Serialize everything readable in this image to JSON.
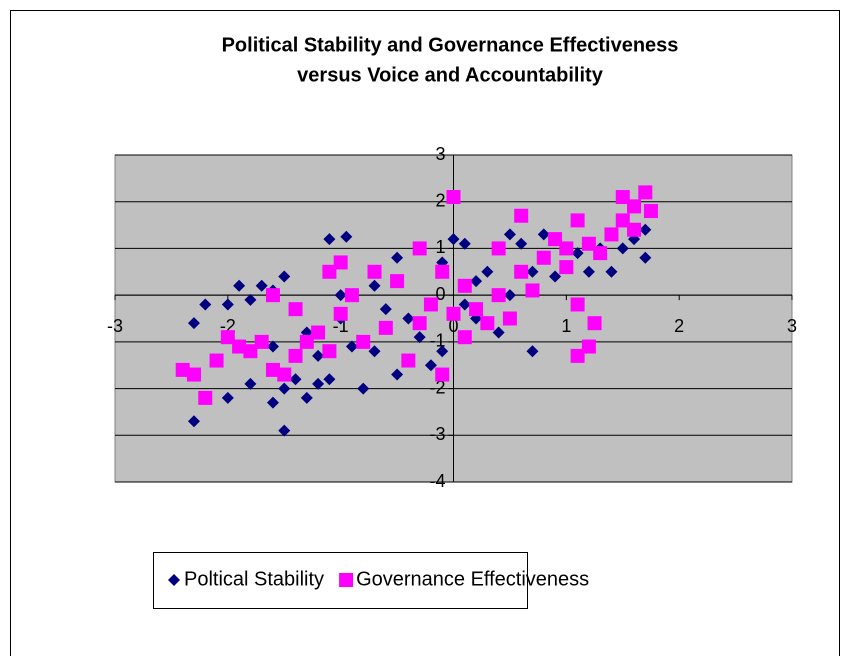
{
  "chart_data": {
    "type": "scatter",
    "title": [
      "Political Stability and Governance Effectiveness",
      "versus Voice and Accountability"
    ],
    "xlim": [
      -3,
      3
    ],
    "xticks": [
      -3,
      -2,
      -1,
      0,
      1,
      2,
      3
    ],
    "ylim": [
      -4,
      3
    ],
    "yticks": [
      -4,
      -3,
      -2,
      -1,
      0,
      1,
      2,
      3
    ],
    "grid": true,
    "series": [
      {
        "name": "Poltical Stability",
        "color": "#000080",
        "marker": "diamond",
        "x": [
          -2.3,
          -2.2,
          -2.0,
          -1.9,
          -1.8,
          -1.7,
          -1.6,
          -1.5,
          -2.3,
          -2.0,
          -1.8,
          -1.6,
          -1.5,
          -1.5,
          -1.4,
          -1.3,
          -1.2,
          -1.1,
          -1.1,
          -0.95,
          -1.0,
          -0.9,
          -0.8,
          -0.7,
          -0.6,
          -0.5,
          -0.5,
          -0.3,
          -0.2,
          -0.1,
          -0.1,
          0,
          0.1,
          0.1,
          0.2,
          0.3,
          0.4,
          0.5,
          0.6,
          0.7,
          0.7,
          0.8,
          0.9,
          1.0,
          1.1,
          1.2,
          1.3,
          1.4,
          1.5,
          1.6,
          1.7,
          1.7,
          -1.2,
          -0.4,
          0.2,
          -0.7,
          -1.3,
          -1.6,
          -1.0,
          0.5
        ],
        "values": [
          -0.6,
          -0.2,
          -0.2,
          0.2,
          -0.1,
          0.2,
          0.1,
          0.4,
          -2.7,
          -2.2,
          -1.9,
          -2.3,
          -2.0,
          -2.9,
          -1.8,
          -2.2,
          -1.9,
          -1.8,
          1.2,
          1.25,
          -0.5,
          -1.1,
          -2.0,
          -1.2,
          -0.3,
          0.8,
          -1.7,
          -0.9,
          -1.5,
          -1.2,
          0.7,
          1.2,
          -0.2,
          1.1,
          0.3,
          0.5,
          -0.8,
          1.3,
          1.1,
          -1.2,
          0.5,
          1.3,
          0.4,
          0.6,
          0.9,
          0.5,
          1.0,
          0.5,
          1.0,
          1.2,
          1.4,
          0.8,
          -1.3,
          -0.5,
          -0.5,
          0.2,
          -0.8,
          -1.1,
          0.0,
          0.0
        ]
      },
      {
        "name": "Governance Effectiveness",
        "color": "#ff00ff",
        "marker": "square",
        "x": [
          -2.4,
          -2.3,
          -2.2,
          -2.1,
          -2.0,
          -1.9,
          -1.8,
          -1.7,
          -1.6,
          -1.6,
          -1.5,
          -1.4,
          -1.4,
          -1.3,
          -1.2,
          -1.1,
          -1.1,
          -1.0,
          -1.0,
          -0.9,
          -0.8,
          -0.7,
          -0.6,
          -0.5,
          -0.4,
          -0.3,
          -0.3,
          -0.2,
          -0.1,
          -0.1,
          0,
          0,
          0.1,
          0.1,
          0.2,
          0.3,
          0.4,
          0.4,
          0.5,
          0.6,
          0.6,
          0.7,
          0.8,
          0.9,
          1.0,
          1.0,
          1.1,
          1.1,
          1.1,
          1.2,
          1.2,
          1.25,
          1.3,
          1.4,
          1.5,
          1.5,
          1.6,
          1.6,
          1.7,
          1.75
        ],
        "values": [
          -1.6,
          -1.7,
          -2.2,
          -1.4,
          -0.9,
          -1.1,
          -1.2,
          -1.0,
          0.0,
          -1.6,
          -1.7,
          -1.3,
          -0.3,
          -1.0,
          -0.8,
          -1.2,
          0.5,
          -0.4,
          0.7,
          0.0,
          -1.0,
          0.5,
          -0.7,
          0.3,
          -1.4,
          1.0,
          -0.6,
          -0.2,
          -1.7,
          0.5,
          2.1,
          -0.4,
          -0.9,
          0.2,
          -0.3,
          -0.6,
          1.0,
          0.0,
          -0.5,
          1.7,
          0.5,
          0.1,
          0.8,
          1.2,
          0.6,
          1.0,
          1.6,
          -0.2,
          -1.3,
          -1.1,
          1.1,
          -0.6,
          0.9,
          1.3,
          2.1,
          1.6,
          1.9,
          1.4,
          2.2,
          1.8
        ]
      }
    ]
  }
}
